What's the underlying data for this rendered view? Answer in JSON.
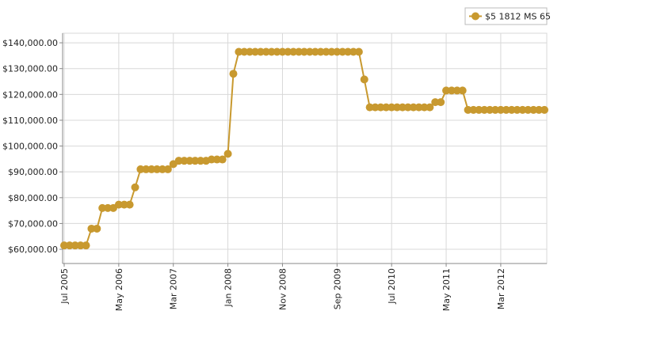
{
  "chart_data": {
    "type": "line",
    "x": [
      "2005-07",
      "2005-08",
      "2005-09",
      "2005-10",
      "2005-11",
      "2005-12",
      "2006-01",
      "2006-02",
      "2006-03",
      "2006-04",
      "2006-05",
      "2006-06",
      "2006-07",
      "2006-08",
      "2006-09",
      "2006-10",
      "2006-11",
      "2006-12",
      "2007-01",
      "2007-02",
      "2007-03",
      "2007-04",
      "2007-05",
      "2007-06",
      "2007-07",
      "2007-08",
      "2007-09",
      "2007-10",
      "2007-11",
      "2007-12",
      "2008-01",
      "2008-02",
      "2008-03",
      "2008-04",
      "2008-05",
      "2008-06",
      "2008-07",
      "2008-08",
      "2008-09",
      "2008-10",
      "2008-11",
      "2008-12",
      "2009-01",
      "2009-02",
      "2009-03",
      "2009-04",
      "2009-05",
      "2009-06",
      "2009-07",
      "2009-08",
      "2009-09",
      "2009-10",
      "2009-11",
      "2009-12",
      "2010-01",
      "2010-02",
      "2010-03",
      "2010-04",
      "2010-05",
      "2010-06",
      "2010-07",
      "2010-08",
      "2010-09",
      "2010-10",
      "2010-11",
      "2010-12",
      "2011-01",
      "2011-02",
      "2011-03",
      "2011-04",
      "2011-05",
      "2011-06",
      "2011-07",
      "2011-08",
      "2011-09",
      "2011-10",
      "2011-11",
      "2011-12",
      "2012-01",
      "2012-02",
      "2012-03",
      "2012-04",
      "2012-05",
      "2012-06",
      "2012-07",
      "2012-08",
      "2012-09",
      "2012-10",
      "2012-11"
    ],
    "series": [
      {
        "name": "$5 1812 MS 65",
        "color": "#c8992f",
        "values": [
          61500,
          61500,
          61500,
          61500,
          61500,
          68000,
          68000,
          76000,
          76000,
          76000,
          77300,
          77300,
          77300,
          84000,
          91000,
          91000,
          91000,
          91000,
          91000,
          91000,
          93000,
          94300,
          94300,
          94300,
          94300,
          94300,
          94300,
          94800,
          94800,
          94800,
          97000,
          128000,
          136500,
          136500,
          136500,
          136500,
          136500,
          136500,
          136500,
          136500,
          136500,
          136500,
          136500,
          136500,
          136500,
          136500,
          136500,
          136500,
          136500,
          136500,
          136500,
          136500,
          136500,
          136500,
          136500,
          125800,
          115000,
          115000,
          115000,
          115000,
          115000,
          115000,
          115000,
          115000,
          115000,
          115000,
          115000,
          115000,
          117000,
          117000,
          121500,
          121500,
          121500,
          121500,
          114000,
          114000,
          114000,
          114000,
          114000,
          114000,
          114000,
          114000,
          114000,
          114000,
          114000,
          114000,
          114000,
          114000,
          114000
        ]
      }
    ],
    "xlim": [
      "2005-07",
      "2012-11"
    ],
    "xticks": [
      {
        "value": "2005-07",
        "label": "Jul 2005"
      },
      {
        "value": "2006-05",
        "label": "May 2006"
      },
      {
        "value": "2007-03",
        "label": "Mar 2007"
      },
      {
        "value": "2008-01",
        "label": "Jan 2008"
      },
      {
        "value": "2008-11",
        "label": "Nov 2008"
      },
      {
        "value": "2009-09",
        "label": "Sep 2009"
      },
      {
        "value": "2010-07",
        "label": "Jul 2010"
      },
      {
        "value": "2011-05",
        "label": "May 2011"
      },
      {
        "value": "2012-03",
        "label": "Mar 2012"
      }
    ],
    "ylim": [
      54500,
      143700
    ],
    "yticks": [
      {
        "value": 60000,
        "label": "$60,000.00"
      },
      {
        "value": 70000,
        "label": "$70,000.00"
      },
      {
        "value": 80000,
        "label": "$80,000.00"
      },
      {
        "value": 90000,
        "label": "$90,000.00"
      },
      {
        "value": 100000,
        "label": "$100,000.00"
      },
      {
        "value": 110000,
        "label": "$110,000.00"
      },
      {
        "value": 120000,
        "label": "$120,000.00"
      },
      {
        "value": 130000,
        "label": "$130,000.00"
      },
      {
        "value": 140000,
        "label": "$140,000.00"
      }
    ],
    "grid": true,
    "legend": "top-right"
  }
}
